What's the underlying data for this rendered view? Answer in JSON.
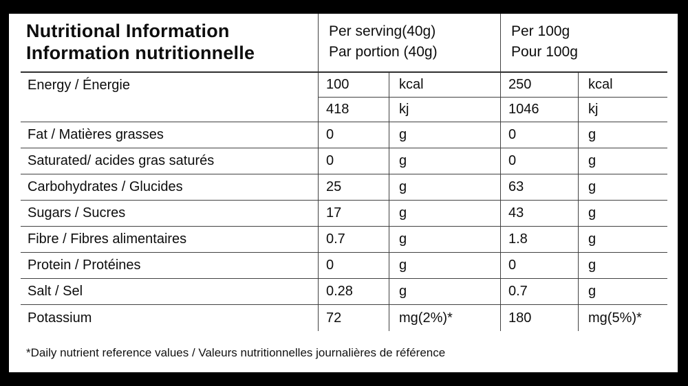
{
  "header": {
    "title_line1": "Nutritional Information",
    "title_line2": "Information nutritionnelle",
    "col_serving_line1": "Per serving(40g)",
    "col_serving_line2": "Par portion (40g)",
    "col_per100g_line1": "Per 100g",
    "col_per100g_line2": "Pour 100g"
  },
  "energy": {
    "label": "Energy / Énergie",
    "sub_rows": [
      {
        "serving_value": "100",
        "serving_unit": "kcal",
        "per100g_value": "250",
        "per100g_unit": "kcal"
      },
      {
        "serving_value": "418",
        "serving_unit": "kj",
        "per100g_value": "1046",
        "per100g_unit": "kj"
      }
    ]
  },
  "nutrients": [
    {
      "label": "Fat / Matières grasses",
      "serving_value": "0",
      "serving_unit": "g",
      "per100g_value": "0",
      "per100g_unit": "g"
    },
    {
      "label": "Saturated/ acides gras saturés",
      "serving_value": "0",
      "serving_unit": "g",
      "per100g_value": "0",
      "per100g_unit": "g"
    },
    {
      "label": "Carbohydrates / Glucides",
      "serving_value": "25",
      "serving_unit": "g",
      "per100g_value": "63",
      "per100g_unit": "g"
    },
    {
      "label": "Sugars / Sucres",
      "serving_value": "17",
      "serving_unit": "g",
      "per100g_value": "43",
      "per100g_unit": "g"
    },
    {
      "label": "Fibre / Fibres alimentaires",
      "serving_value": "0.7",
      "serving_unit": "g",
      "per100g_value": "1.8",
      "per100g_unit": "g"
    },
    {
      "label": "Protein / Protéines",
      "serving_value": "0",
      "serving_unit": "g",
      "per100g_value": "0",
      "per100g_unit": "g"
    },
    {
      "label": "Salt / Sel",
      "serving_value": "0.28",
      "serving_unit": "g",
      "per100g_value": "0.7",
      "per100g_unit": "g"
    },
    {
      "label": "Potassium",
      "serving_value": "72",
      "serving_unit": "mg(2%)*",
      "per100g_value": "180",
      "per100g_unit": "mg(5%)*"
    }
  ],
  "footnote": "*Daily nutrient reference values / Valeurs nutritionnelles journalières de référence",
  "colors": {
    "background": "#000000",
    "panel": "#ffffff",
    "text": "#0d0d0d",
    "line": "#404040"
  }
}
